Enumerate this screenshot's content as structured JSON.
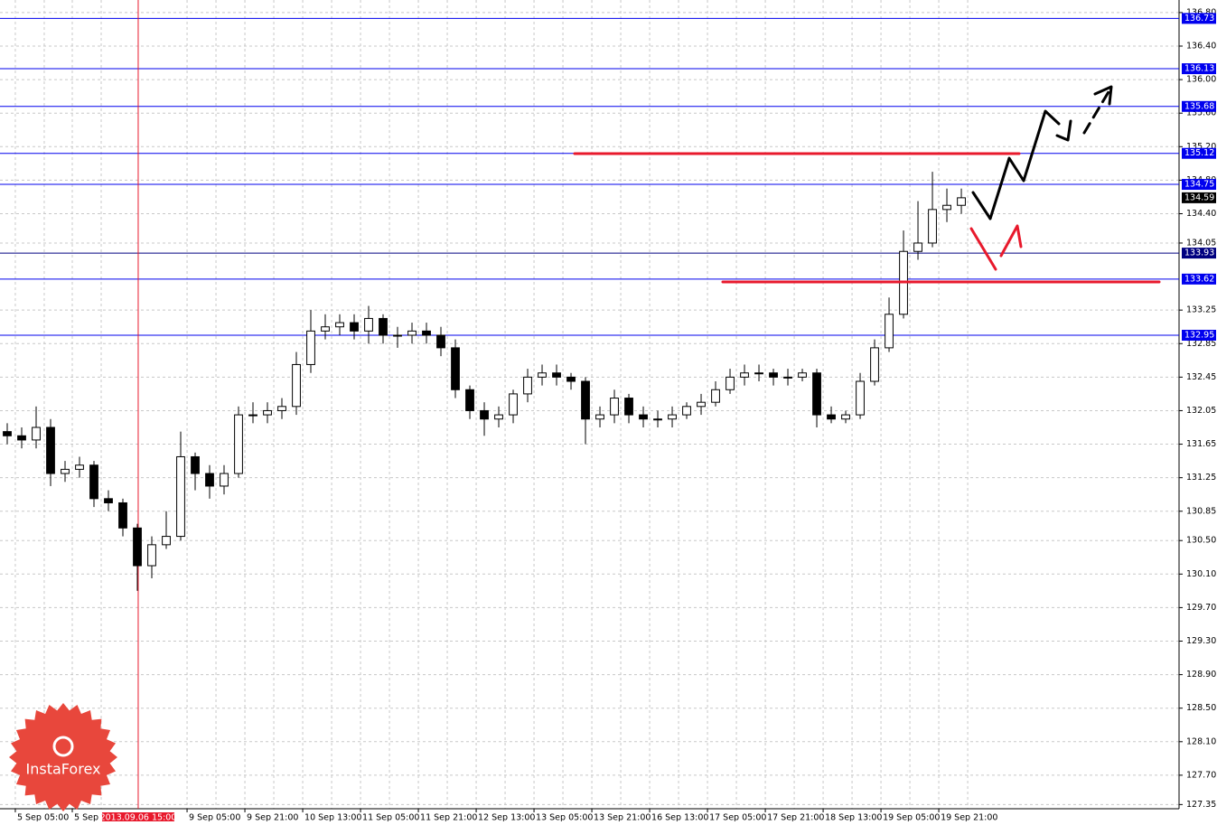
{
  "chart_data": {
    "type": "candlestick",
    "xlim": [
      -0.5,
      81.06
    ],
    "ylim": [
      127.3,
      136.95
    ],
    "yticks": [
      {
        "value": 136.8,
        "label": "136.80"
      },
      {
        "value": 136.4,
        "label": "136.40"
      },
      {
        "value": 136.0,
        "label": "136.00"
      },
      {
        "value": 135.6,
        "label": "135.60"
      },
      {
        "value": 135.2,
        "label": "135.20"
      },
      {
        "value": 134.8,
        "label": "134.80"
      },
      {
        "value": 134.4,
        "label": "134.40"
      },
      134.05,
      133.25,
      132.85,
      132.45,
      132.05,
      131.65,
      131.25,
      130.85,
      {
        "value": 130.5,
        "label": "130.50"
      },
      {
        "value": 130.1,
        "label": "130.10"
      },
      {
        "value": 129.7,
        "label": "129.70"
      },
      {
        "value": 129.3,
        "label": "129.30"
      },
      {
        "value": 128.9,
        "label": "128.90"
      },
      {
        "value": 128.5,
        "label": "128.50"
      },
      {
        "value": 128.1,
        "label": "128.10"
      },
      {
        "value": 127.7,
        "label": "127.70"
      },
      127.35
    ],
    "xticks": [
      {
        "value": 0.56,
        "label": "5 Sep 05:00"
      },
      {
        "value": 4.5,
        "label": "5 Sep 2"
      },
      {
        "value": 12.44,
        "label": "9 Sep 05:00"
      },
      {
        "value": 16.44,
        "label": "9 Sep 21:00"
      },
      {
        "value": 20.44,
        "label": "10 Sep 13:00"
      },
      {
        "value": 24.44,
        "label": "11 Sep 05:00"
      },
      {
        "value": 28.44,
        "label": "11 Sep 21:00"
      },
      {
        "value": 32.44,
        "label": "12 Sep 13:00"
      },
      {
        "value": 36.44,
        "label": "13 Sep 05:00"
      },
      {
        "value": 40.44,
        "label": "13 Sep 21:00"
      },
      {
        "value": 44.44,
        "label": "16 Sep 13:00"
      },
      {
        "value": 48.44,
        "label": "17 Sep 05:00"
      },
      {
        "value": 52.44,
        "label": "17 Sep 21:00"
      },
      {
        "value": 56.44,
        "label": "18 Sep 13:00"
      },
      {
        "value": 60.44,
        "label": "19 Sep 05:00"
      },
      {
        "value": 64.44,
        "label": "19 Sep 21:00"
      }
    ],
    "marker": {
      "x": 9.06,
      "label": "2013.09.06 15:00",
      "color": "#e8192c"
    },
    "grid": true,
    "levels": [
      {
        "value": 136.73,
        "color": "#0000ee"
      },
      {
        "value": 136.13,
        "color": "#0000ee"
      },
      {
        "value": 135.68,
        "color": "#0000ee"
      },
      {
        "value": 135.12,
        "color": "#0000ee"
      },
      {
        "value": 134.75,
        "color": "#0000ee"
      },
      {
        "value": 133.93,
        "color": "#000080"
      },
      {
        "value": 133.62,
        "color": "#0000ee"
      },
      {
        "value": 132.95,
        "color": "#0000ee"
      }
    ],
    "price": 134.59,
    "open": [
      131.8,
      131.75,
      131.7,
      131.85,
      131.3,
      131.35,
      131.4,
      131.0,
      130.95,
      130.65,
      130.2,
      130.45,
      130.55,
      131.5,
      131.3,
      131.15,
      131.3,
      132.0,
      132.0,
      132.05,
      132.1,
      132.6,
      133.0,
      133.05,
      133.1,
      133.0,
      133.15,
      132.95,
      132.95,
      133.0,
      132.95,
      132.8,
      132.3,
      132.05,
      131.95,
      132.0,
      132.25,
      132.45,
      132.5,
      132.45,
      132.4,
      131.95,
      132.0,
      132.2,
      132.0,
      131.95,
      131.95,
      132.0,
      132.1,
      132.15,
      132.3,
      132.45,
      132.5,
      132.5,
      132.45,
      132.45,
      132.5,
      132.0,
      131.95,
      132.0,
      132.4,
      132.8,
      133.2,
      133.95,
      134.05,
      134.45,
      134.5
    ],
    "high": [
      131.9,
      131.85,
      132.1,
      131.95,
      131.45,
      131.5,
      131.45,
      131.1,
      131.0,
      130.7,
      130.55,
      130.85,
      131.8,
      131.55,
      131.4,
      131.4,
      132.1,
      132.15,
      132.15,
      132.2,
      132.75,
      133.25,
      133.2,
      133.2,
      133.2,
      133.3,
      133.2,
      133.05,
      133.1,
      133.1,
      133.05,
      132.9,
      132.35,
      132.15,
      132.1,
      132.3,
      132.55,
      132.6,
      132.6,
      132.5,
      132.45,
      132.1,
      132.3,
      132.25,
      132.1,
      132.05,
      132.1,
      132.15,
      132.25,
      132.4,
      132.55,
      132.6,
      132.6,
      132.55,
      132.55,
      132.55,
      132.55,
      132.1,
      132.05,
      132.5,
      132.9,
      133.4,
      134.2,
      134.55,
      134.9,
      134.7,
      134.7
    ],
    "low": [
      131.65,
      131.6,
      131.6,
      131.15,
      131.2,
      131.25,
      130.9,
      130.85,
      130.55,
      129.9,
      130.05,
      130.4,
      130.5,
      131.1,
      131.0,
      131.05,
      131.25,
      131.9,
      131.9,
      131.95,
      132.0,
      132.5,
      132.9,
      132.95,
      132.9,
      132.85,
      132.85,
      132.8,
      132.85,
      132.85,
      132.7,
      132.2,
      131.95,
      131.75,
      131.85,
      131.9,
      132.15,
      132.35,
      132.35,
      132.3,
      131.65,
      131.85,
      131.9,
      131.9,
      131.85,
      131.85,
      131.85,
      131.95,
      132.0,
      132.1,
      132.25,
      132.35,
      132.4,
      132.35,
      132.35,
      132.4,
      131.85,
      131.9,
      131.9,
      131.95,
      132.35,
      132.75,
      133.15,
      133.85,
      134.0,
      134.3,
      134.4
    ],
    "close": [
      131.75,
      131.7,
      131.85,
      131.3,
      131.35,
      131.4,
      131.0,
      130.95,
      130.65,
      130.2,
      130.45,
      130.55,
      131.5,
      131.3,
      131.15,
      131.3,
      132.0,
      132.0,
      132.05,
      132.1,
      132.6,
      133.0,
      133.05,
      133.1,
      133.0,
      133.15,
      132.95,
      132.95,
      133.0,
      132.95,
      132.8,
      132.3,
      132.05,
      131.95,
      132.0,
      132.25,
      132.45,
      132.5,
      132.45,
      132.4,
      131.95,
      132.0,
      132.2,
      132.0,
      131.95,
      131.95,
      132.0,
      132.1,
      132.15,
      132.3,
      132.45,
      132.5,
      132.5,
      132.45,
      132.45,
      132.5,
      132.0,
      131.95,
      132.0,
      132.4,
      132.8,
      133.2,
      133.95,
      134.05,
      134.45,
      134.5,
      134.59
    ]
  },
  "logo": "InstaForex"
}
